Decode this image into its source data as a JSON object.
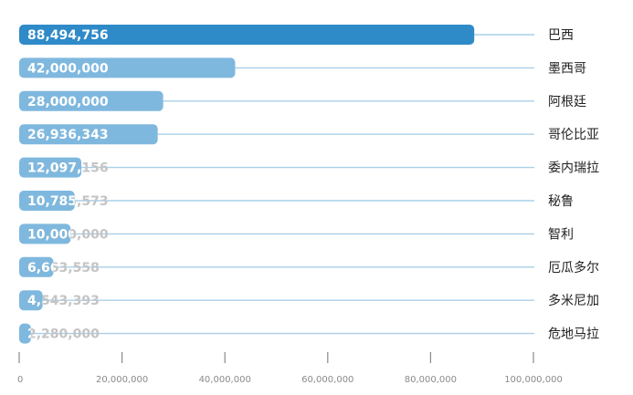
{
  "chart_data": {
    "type": "bar",
    "orientation": "horizontal",
    "categories": [
      "巴西",
      "墨西哥",
      "阿根廷",
      "哥伦比亚",
      "委内瑞拉",
      "秘鲁",
      "智利",
      "厄瓜多尔",
      "多米尼加",
      "危地马拉"
    ],
    "values": [
      88494756,
      42000000,
      28000000,
      26936343,
      12097156,
      10785573,
      10000000,
      6663558,
      4543393,
      2280000
    ],
    "value_labels": [
      "88,494,756",
      "42,000,000",
      "28,000,000",
      "26,936,343",
      "12,097,156",
      "10,785,573",
      "10,000,000",
      "6,663,558",
      "4,543,393",
      "2,280,000"
    ],
    "x_ticks": [
      0,
      20000000,
      40000000,
      60000000,
      80000000,
      100000000
    ],
    "x_tick_labels": [
      "0",
      "20,000,000",
      "40,000,000",
      "60,000,000",
      "80,000,000",
      "100,000,000"
    ],
    "xlim": [
      0,
      100000000
    ],
    "category_label_position": "right",
    "grid": false,
    "colors": {
      "top_bar": "#2f8ac8",
      "bar": "#7fb8de",
      "guide_line": "#a9cfe8",
      "label_on_bar": "#ffffff",
      "label_off_bar": "#c4c4c4",
      "axis": "#888888"
    }
  }
}
